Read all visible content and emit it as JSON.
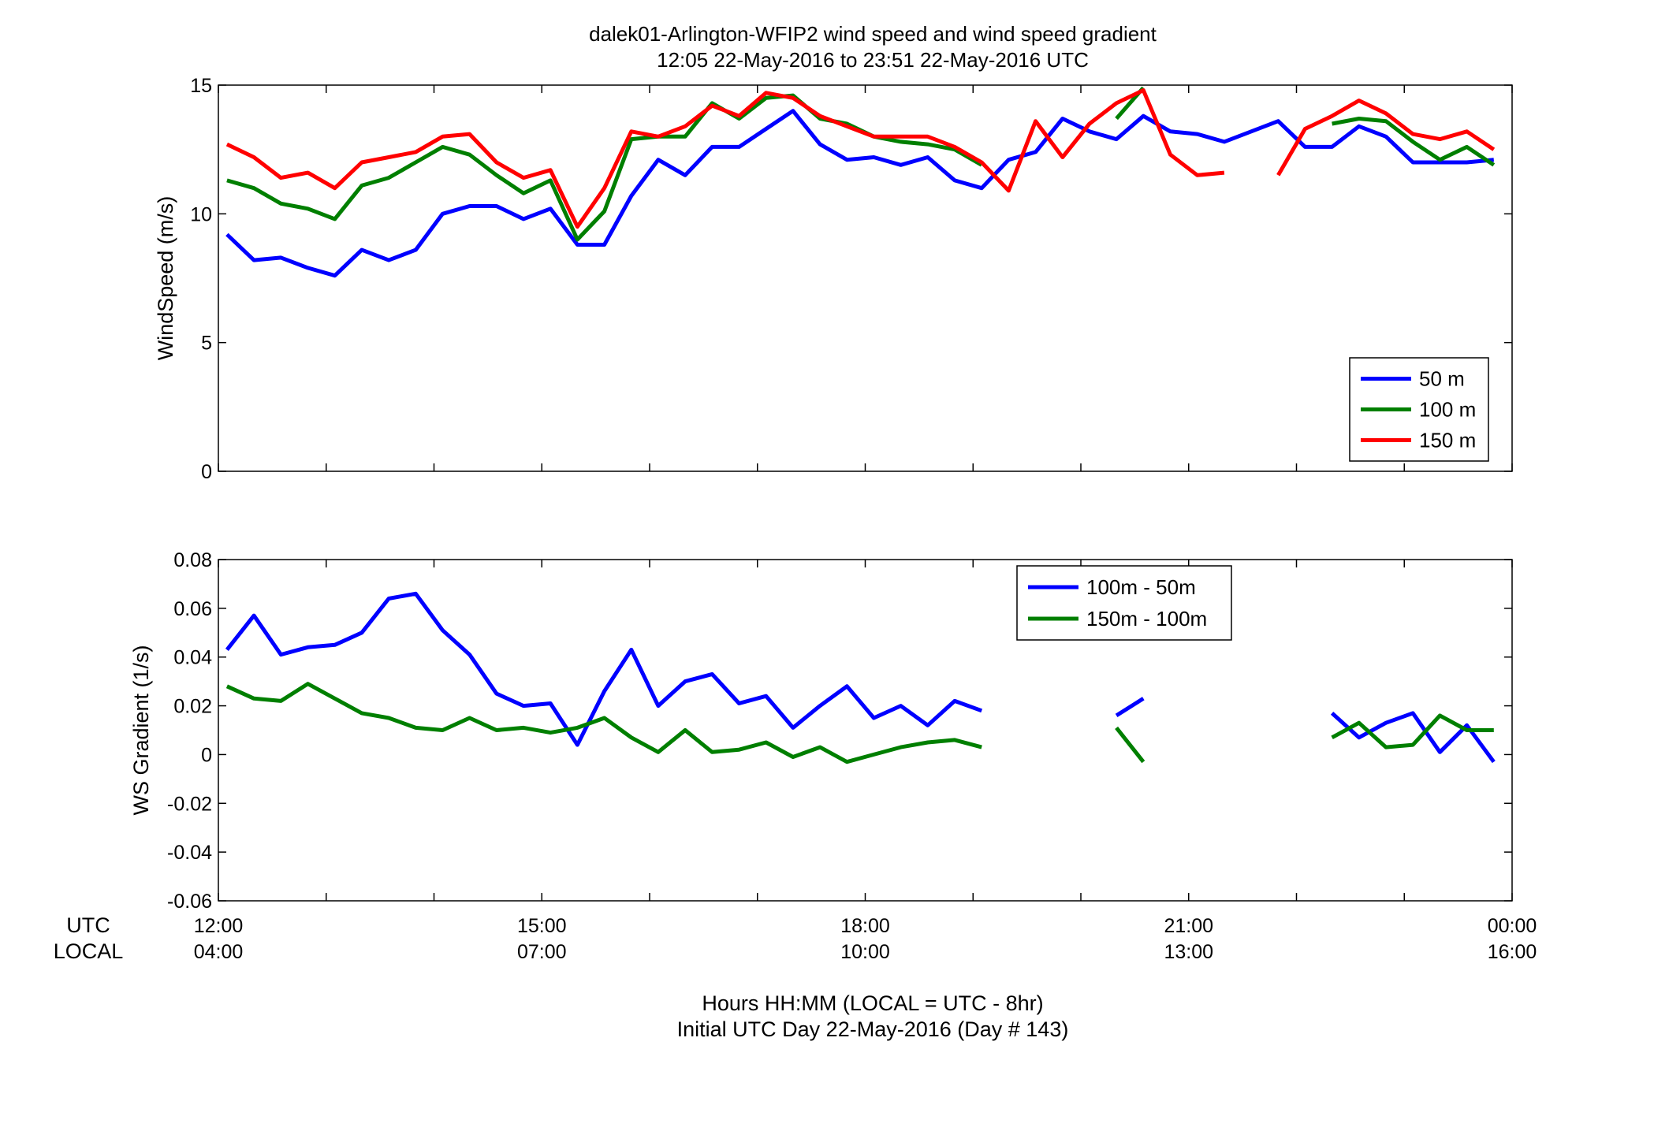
{
  "title_line1": "dalek01-Arlington-WFIP2  wind speed and wind speed gradient",
  "title_line2": "12:05 22-May-2016 to 23:51 22-May-2016  UTC",
  "footer_line1": "Hours HH:MM  (LOCAL = UTC - 8hr)",
  "footer_line2": "Initial UTC Day 22-May-2016 (Day # 143)",
  "row_label_utc": "UTC",
  "row_label_local": "LOCAL",
  "colors": {
    "50m": "#0000ff",
    "100m": "#007f00",
    "150m": "#ff0000"
  },
  "chart_data": [
    {
      "type": "line",
      "ylabel": "WindSpeed (m/s)",
      "ylim": [
        0,
        15
      ],
      "yticks": [
        "0",
        "5",
        "10",
        "15"
      ],
      "xlim_hours": [
        12,
        24
      ],
      "xticks": [
        {
          "utc": "12:00",
          "local": "04:00",
          "hour": 12
        },
        {
          "utc": "15:00",
          "local": "07:00",
          "hour": 15
        },
        {
          "utc": "18:00",
          "local": "10:00",
          "hour": 18
        },
        {
          "utc": "21:00",
          "local": "13:00",
          "hour": 21
        },
        {
          "utc": "00:00",
          "local": "16:00",
          "hour": 24
        }
      ],
      "legend_position": "lower-right",
      "x": [
        12.08,
        12.33,
        12.58,
        12.83,
        13.08,
        13.33,
        13.58,
        13.83,
        14.08,
        14.33,
        14.58,
        14.83,
        15.08,
        15.33,
        15.58,
        15.83,
        16.08,
        16.33,
        16.58,
        16.83,
        17.08,
        17.33,
        17.58,
        17.83,
        18.08,
        18.33,
        18.58,
        18.83,
        19.08,
        19.33,
        19.58,
        19.83,
        20.08,
        20.33,
        20.58,
        20.83,
        21.08,
        21.33,
        21.58,
        21.83,
        22.08,
        22.33,
        22.58,
        22.83,
        23.08,
        23.33,
        23.58,
        23.83
      ],
      "series": [
        {
          "name": "50 m",
          "color": "#0000ff",
          "values": [
            9.2,
            8.2,
            8.3,
            7.9,
            7.6,
            8.6,
            8.2,
            8.6,
            10.0,
            10.3,
            10.3,
            9.8,
            10.2,
            8.8,
            8.8,
            10.7,
            12.1,
            11.5,
            12.6,
            12.6,
            13.3,
            14.0,
            12.7,
            12.1,
            12.2,
            11.9,
            12.2,
            11.3,
            11.0,
            12.1,
            12.4,
            13.7,
            13.2,
            12.9,
            13.8,
            13.2,
            13.1,
            12.8,
            13.2,
            13.6,
            12.6,
            12.6,
            13.4,
            13.0,
            12.0,
            12.0,
            12.0,
            12.1
          ]
        },
        {
          "name": "100 m",
          "color": "#007f00",
          "values": [
            11.3,
            11.0,
            10.4,
            10.2,
            9.8,
            11.1,
            11.4,
            12.0,
            12.6,
            12.3,
            11.5,
            10.8,
            11.3,
            9.0,
            10.1,
            12.9,
            13.0,
            13.0,
            14.3,
            13.7,
            14.5,
            14.6,
            13.7,
            13.5,
            13.0,
            12.8,
            12.7,
            12.5,
            11.9,
            null,
            null,
            null,
            null,
            13.7,
            14.9,
            null,
            null,
            null,
            null,
            null,
            null,
            13.5,
            13.7,
            13.6,
            12.8,
            12.1,
            12.6,
            11.9
          ]
        },
        {
          "name": "150 m",
          "color": "#ff0000",
          "values": [
            12.7,
            12.2,
            11.4,
            11.6,
            11.0,
            12.0,
            12.2,
            12.4,
            13.0,
            13.1,
            12.0,
            11.4,
            11.7,
            9.5,
            11.0,
            13.2,
            13.0,
            13.4,
            14.2,
            13.8,
            14.7,
            14.5,
            13.8,
            13.4,
            13.0,
            13.0,
            13.0,
            12.6,
            12.0,
            10.9,
            13.6,
            12.2,
            13.5,
            14.3,
            14.8,
            12.3,
            11.5,
            11.6,
            null,
            11.5,
            13.3,
            13.8,
            14.4,
            13.9,
            13.1,
            12.9,
            13.2,
            12.5
          ]
        }
      ]
    },
    {
      "type": "line",
      "ylabel": "WS Gradient (1/s)",
      "ylim": [
        -0.06,
        0.08
      ],
      "yticks": [
        "-0.06",
        "-0.04",
        "-0.02",
        "0",
        "0.02",
        "0.04",
        "0.06",
        "0.08"
      ],
      "xlim_hours": [
        12,
        24
      ],
      "legend_position": "top",
      "x": [
        12.08,
        12.33,
        12.58,
        12.83,
        13.08,
        13.33,
        13.58,
        13.83,
        14.08,
        14.33,
        14.58,
        14.83,
        15.08,
        15.33,
        15.58,
        15.83,
        16.08,
        16.33,
        16.58,
        16.83,
        17.08,
        17.33,
        17.58,
        17.83,
        18.08,
        18.33,
        18.58,
        18.83,
        19.08,
        19.33,
        19.58,
        19.83,
        20.08,
        20.33,
        20.58,
        20.83,
        21.08,
        21.33,
        21.58,
        21.83,
        22.08,
        22.33,
        22.58,
        22.83,
        23.08,
        23.33,
        23.58,
        23.83
      ],
      "series": [
        {
          "name": "100m - 50m",
          "color": "#0000ff",
          "values": [
            0.043,
            0.057,
            0.041,
            0.044,
            0.045,
            0.05,
            0.064,
            0.066,
            0.051,
            0.041,
            0.025,
            0.02,
            0.021,
            0.004,
            0.026,
            0.043,
            0.02,
            0.03,
            0.033,
            0.021,
            0.024,
            0.011,
            0.02,
            0.028,
            0.015,
            0.02,
            0.012,
            0.022,
            0.018,
            null,
            null,
            null,
            null,
            0.016,
            0.023,
            null,
            null,
            null,
            null,
            null,
            null,
            0.017,
            0.007,
            0.013,
            0.017,
            0.001,
            0.012,
            -0.003
          ]
        },
        {
          "name": "150m - 100m",
          "color": "#007f00",
          "values": [
            0.028,
            0.023,
            0.022,
            0.029,
            0.023,
            0.017,
            0.015,
            0.011,
            0.01,
            0.015,
            0.01,
            0.011,
            0.009,
            0.011,
            0.015,
            0.007,
            0.001,
            0.01,
            0.001,
            0.002,
            0.005,
            -0.001,
            0.003,
            -0.003,
            0.0,
            0.003,
            0.005,
            0.006,
            0.003,
            null,
            null,
            null,
            null,
            0.011,
            -0.003,
            null,
            null,
            null,
            null,
            null,
            null,
            0.007,
            0.013,
            0.003,
            0.004,
            0.016,
            0.01,
            0.01
          ]
        }
      ]
    }
  ]
}
